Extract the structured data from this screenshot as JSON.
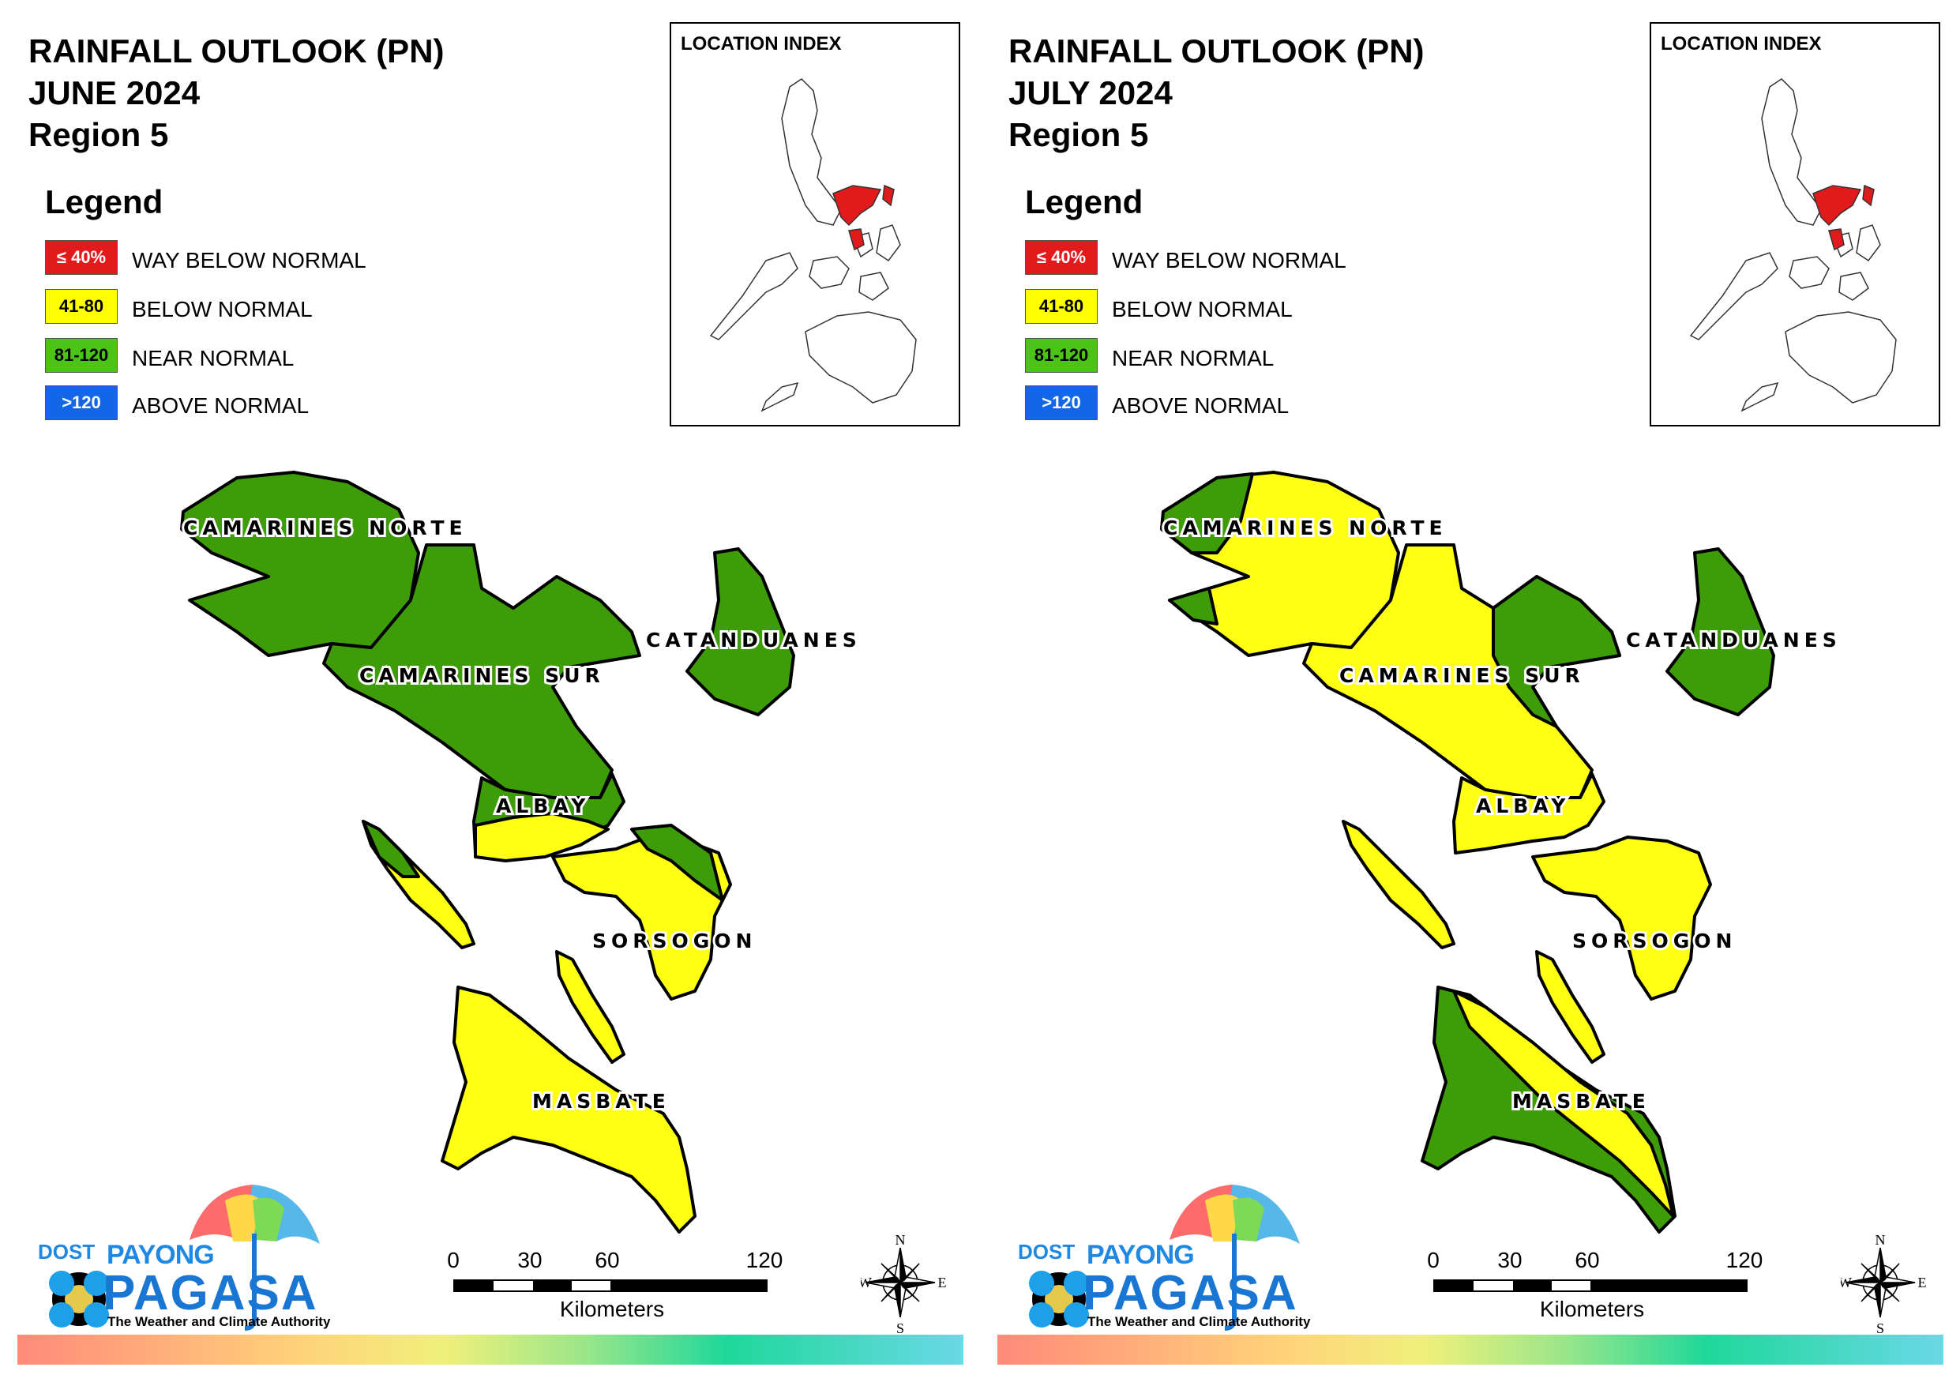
{
  "panels": [
    {
      "title_line1": "RAINFALL OUTLOOK (PN)",
      "title_line2": "JUNE 2024",
      "title_line3": "Region 5",
      "index_title": "LOCATION INDEX",
      "provinces": {
        "camarines_norte": "CAMARINES NORTE",
        "camarines_sur": "CAMARINES SUR",
        "catanduanes": "CATANDUANES",
        "albay": "ALBAY",
        "sorsogon": "SORSOGON",
        "masbate": "MASBATE"
      },
      "outlook": {
        "camarines_norte": "NEAR NORMAL",
        "camarines_sur": "NEAR NORMAL",
        "catanduanes": "NEAR NORMAL",
        "albay": "NEAR NORMAL / BELOW NORMAL",
        "sorsogon": "BELOW NORMAL",
        "masbate": "BELOW NORMAL"
      }
    },
    {
      "title_line1": "RAINFALL OUTLOOK (PN)",
      "title_line2": "JULY 2024",
      "title_line3": "Region 5",
      "index_title": "LOCATION INDEX",
      "provinces": {
        "camarines_norte": "CAMARINES NORTE",
        "camarines_sur": "CAMARINES SUR",
        "catanduanes": "CATANDUANES",
        "albay": "ALBAY",
        "sorsogon": "SORSOGON",
        "masbate": "MASBATE"
      },
      "outlook": {
        "camarines_norte": "BELOW NORMAL / NEAR NORMAL",
        "camarines_sur": "BELOW NORMAL / NEAR NORMAL",
        "catanduanes": "NEAR NORMAL",
        "albay": "BELOW NORMAL",
        "sorsogon": "BELOW NORMAL",
        "masbate": "NEAR NORMAL / BELOW NORMAL"
      }
    }
  ],
  "legend": {
    "title": "Legend",
    "items": [
      {
        "range": "≤ 40%",
        "label": "WAY BELOW NORMAL",
        "color": "#e31a1c",
        "text_color": "#ffffff"
      },
      {
        "range": "41-80",
        "label": "BELOW NORMAL",
        "color": "#ffff00",
        "text_color": "#000000"
      },
      {
        "range": "81-120",
        "label": "NEAR NORMAL",
        "color": "#4cc417",
        "text_color": "#000000"
      },
      {
        "range": ">120",
        "label": "ABOVE NORMAL",
        "color": "#1466e8",
        "text_color": "#ffffff"
      }
    ]
  },
  "colors": {
    "near_normal": "#3f9c09",
    "below_normal": "#ffff14",
    "highlight": "#e31a1c"
  },
  "scale": {
    "ticks": [
      "0",
      "30",
      "60",
      "120"
    ],
    "unit": "Kilometers"
  },
  "compass": {
    "n": "N",
    "s": "S",
    "e": "E",
    "w": "W"
  },
  "logo": {
    "dost": "DOST",
    "payong": "PAYONG",
    "pagasa": "PAGASA",
    "tagline": "The Weather and Climate Authority"
  }
}
